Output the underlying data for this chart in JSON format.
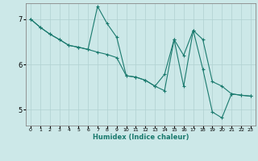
{
  "xlabel": "Humidex (Indice chaleur)",
  "bg_color": "#cce8e8",
  "line_color": "#1a7a6e",
  "grid_color": "#b0d0d0",
  "xlim": [
    -0.5,
    23.5
  ],
  "ylim": [
    4.65,
    7.35
  ],
  "yticks": [
    5,
    6,
    7
  ],
  "xticks": [
    0,
    1,
    2,
    3,
    4,
    5,
    6,
    7,
    8,
    9,
    10,
    11,
    12,
    13,
    14,
    15,
    16,
    17,
    18,
    19,
    20,
    21,
    22,
    23
  ],
  "line1_x": [
    0,
    1,
    2,
    3,
    4,
    5,
    6,
    7,
    8,
    9,
    10,
    11,
    12,
    13,
    14,
    15,
    16,
    17,
    18,
    19,
    20,
    21,
    22,
    23
  ],
  "line1_y": [
    7.0,
    6.82,
    6.67,
    6.55,
    6.42,
    6.38,
    6.33,
    6.27,
    6.22,
    6.15,
    5.75,
    5.72,
    5.65,
    5.52,
    5.78,
    6.55,
    5.52,
    6.75,
    5.9,
    4.95,
    4.82,
    5.35,
    5.32,
    5.3
  ],
  "line2_x": [
    0,
    1,
    2,
    3,
    4,
    5,
    6,
    7,
    8,
    9,
    10,
    11,
    12,
    13,
    14,
    15,
    16,
    17,
    18,
    19,
    20,
    21,
    22,
    23
  ],
  "line2_y": [
    7.0,
    6.82,
    6.67,
    6.55,
    6.42,
    6.38,
    6.33,
    7.28,
    6.9,
    6.6,
    5.75,
    5.72,
    5.65,
    5.52,
    5.42,
    6.55,
    6.2,
    6.75,
    6.55,
    5.62,
    5.52,
    5.35,
    5.32,
    5.3
  ],
  "marker": "+"
}
